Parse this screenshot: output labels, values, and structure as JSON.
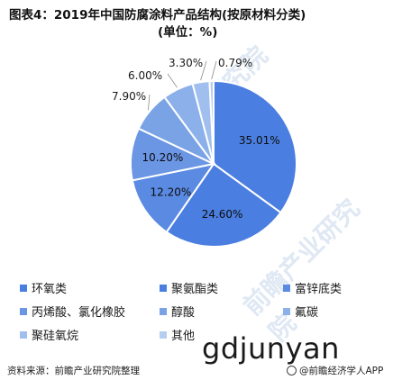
{
  "chart_data": {
    "type": "pie",
    "title_line1": "图表4：2019年中国防腐涂料产品结构(按原材料分类)",
    "title_line2": "(单位：%)",
    "slices": [
      {
        "name": "环氧类",
        "value": 35.01,
        "label": "35.01%",
        "color": "#4a7ee0"
      },
      {
        "name": "聚氨酯类",
        "value": 24.6,
        "label": "24.60%",
        "color": "#4a7ee0"
      },
      {
        "name": "富锌底类",
        "value": 12.2,
        "label": "12.20%",
        "color": "#5a8ae2"
      },
      {
        "name": "丙烯酸、氯化橡胶",
        "value": 10.2,
        "label": "10.20%",
        "color": "#6a96e4"
      },
      {
        "name": "醇酸",
        "value": 7.9,
        "label": "7.90%",
        "color": "#7aa3e6"
      },
      {
        "name": "氟碳",
        "value": 6.0,
        "label": "6.00%",
        "color": "#8cb0ea"
      },
      {
        "name": "聚硅氧烷",
        "value": 3.3,
        "label": "3.30%",
        "color": "#a0bfee"
      },
      {
        "name": "其他",
        "value": 0.79,
        "label": "0.79%",
        "color": "#b6cdf2"
      }
    ]
  },
  "legend": {
    "items": [
      "环氧类",
      "聚氨酯类",
      "富锌底类",
      "丙烯酸、氯化橡胶",
      "醇酸",
      "氟碳",
      "聚硅氧烷",
      "其他"
    ]
  },
  "watermark": "gdjunyan",
  "source": "资料来源：前瞻产业研究院整理",
  "brand": "@前瞻经济学人APP",
  "faint_watermark": "前瞻产业研究院"
}
